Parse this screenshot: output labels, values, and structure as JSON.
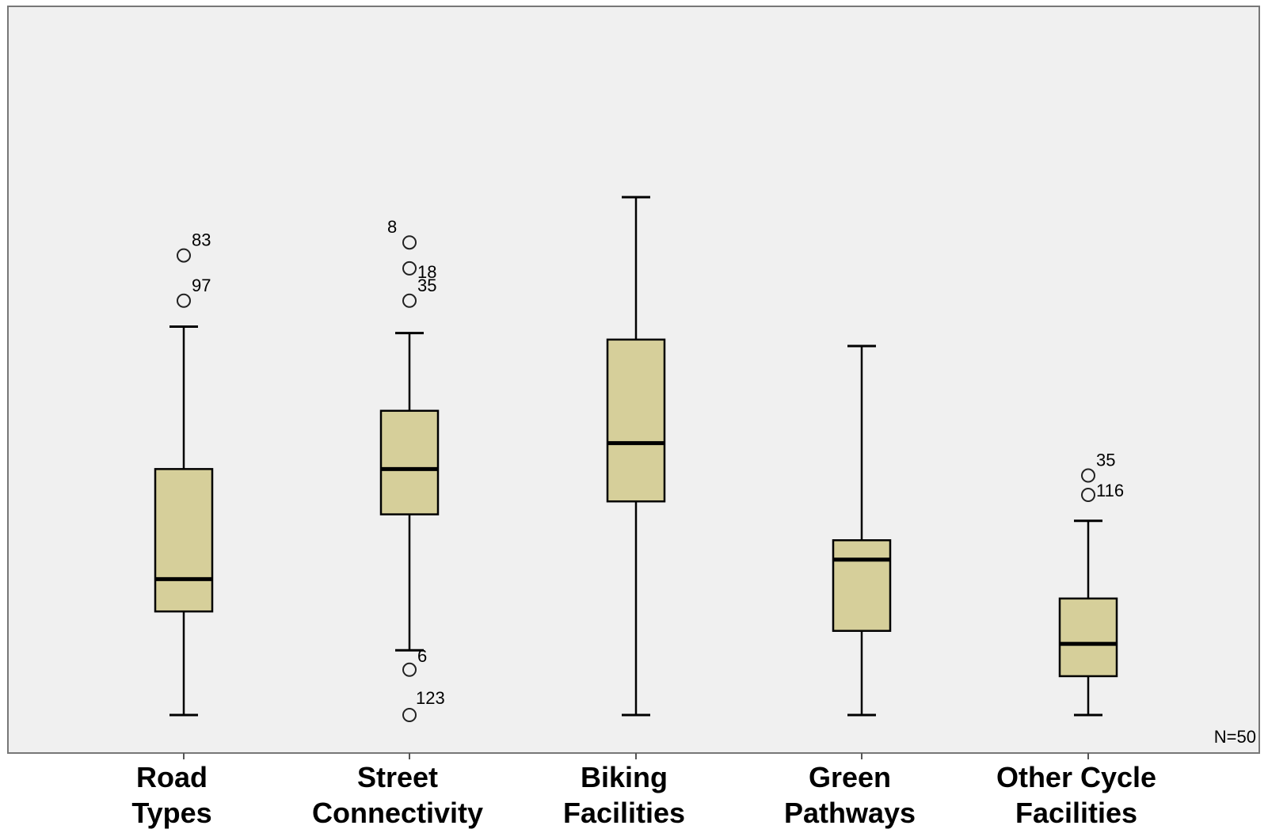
{
  "chart_data": {
    "type": "boxplot",
    "note": "N=50",
    "colors": {
      "box_fill": "#d6cf9a",
      "plot_bg": "#f0f0f0",
      "stroke": "#000000"
    },
    "grid": false,
    "categories": [
      {
        "label_lines": [
          "Road",
          "Types"
        ],
        "min": 1.0,
        "q1": 2.6,
        "median": 3.1,
        "q3": 4.8,
        "max": 7.0,
        "outliers": [
          {
            "value": 7.4,
            "id": "97"
          },
          {
            "value": 8.1,
            "id": "83"
          }
        ]
      },
      {
        "label_lines": [
          "Street",
          "Connectivity"
        ],
        "min": 2.0,
        "q1": 4.1,
        "median": 4.8,
        "q3": 5.7,
        "max": 6.9,
        "outliers": [
          {
            "value": 1.0,
            "id": "123"
          },
          {
            "value": 1.7,
            "id": "6"
          },
          {
            "value": 7.4,
            "id": "35"
          },
          {
            "value": 7.9,
            "id": "18"
          },
          {
            "value": 8.3,
            "id": "8"
          }
        ]
      },
      {
        "label_lines": [
          "Biking",
          "Facilities"
        ],
        "min": 1.0,
        "q1": 4.3,
        "median": 5.2,
        "q3": 6.8,
        "max": 9.0,
        "outliers": []
      },
      {
        "label_lines": [
          "Green",
          "Pathways"
        ],
        "min": 1.0,
        "q1": 2.3,
        "median": 3.4,
        "q3": 3.7,
        "max": 6.7,
        "outliers": []
      },
      {
        "label_lines": [
          "Other Cycle",
          "Facilities"
        ],
        "min": 1.0,
        "q1": 1.6,
        "median": 2.1,
        "q3": 2.8,
        "max": 4.0,
        "outliers": [
          {
            "value": 4.4,
            "id": "116"
          },
          {
            "value": 4.7,
            "id": "35"
          }
        ]
      }
    ]
  }
}
